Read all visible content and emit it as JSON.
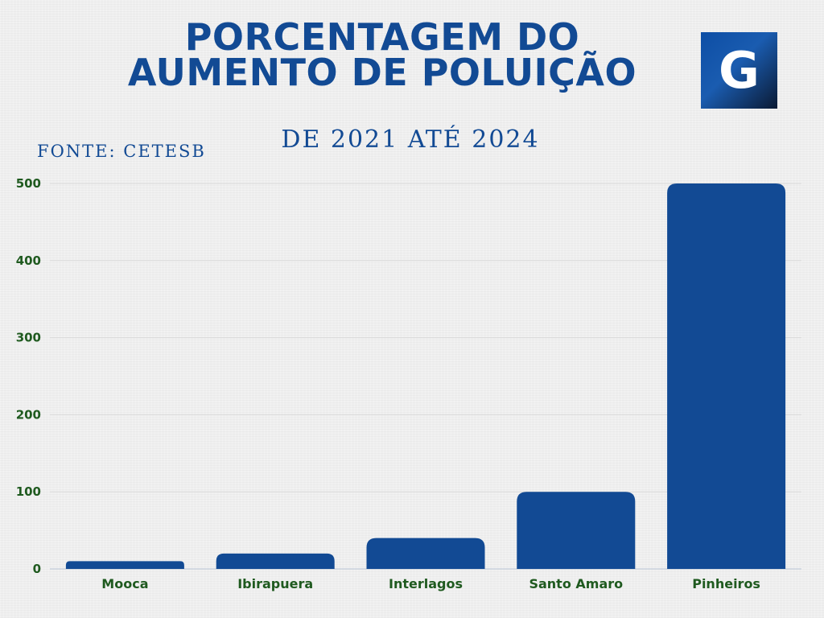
{
  "header": {
    "title_line1": "PORCENTAGEM DO",
    "title_line2": "AUMENTO DE POLUIÇÃO",
    "subtitle": "DE 2021 ATÉ 2024",
    "source": "FONTE: CETESB",
    "logo_letter": "G"
  },
  "colors": {
    "bar": "#124a94",
    "text_blue": "#124a94",
    "label_green": "#1f5a1f",
    "grid": "#d9d9d9"
  },
  "chart_data": {
    "type": "bar",
    "title": "PORCENTAGEM DO AUMENTO DE POLUIÇÃO",
    "subtitle": "DE 2021 ATÉ 2024",
    "categories": [
      "Mooca",
      "Ibirapuera",
      "Interlagos",
      "Santo Amaro",
      "Pinheiros"
    ],
    "values": [
      10,
      20,
      40,
      100,
      500
    ],
    "ylim": [
      0,
      500
    ],
    "yticks": [
      0,
      100,
      200,
      300,
      400,
      500
    ],
    "grid": true,
    "legend": "none"
  }
}
